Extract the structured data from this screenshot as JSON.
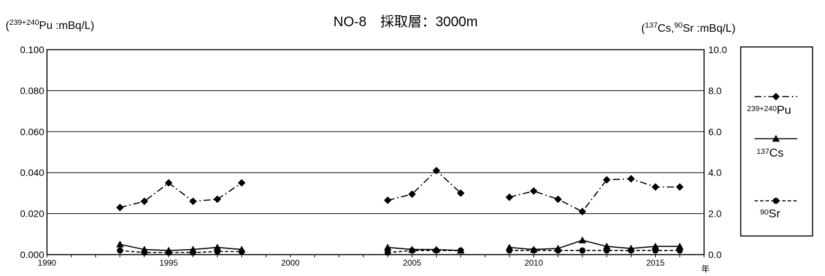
{
  "chart_data": {
    "type": "line",
    "title": "NO-8　採取層：3000m",
    "left_axis": {
      "label_open": "(",
      "label_sup": "239+240",
      "label_main": "Pu :mBq/L)",
      "range": [
        0,
        0.1
      ],
      "ticks": [
        "0.000",
        "0.020",
        "0.040",
        "0.060",
        "0.080",
        "0.100"
      ]
    },
    "right_axis": {
      "label_open": "(",
      "label_sup1": "137",
      "label_mid": "Cs,",
      "label_sup2": "90",
      "label_main": "Sr :mBq/L)",
      "range": [
        0,
        10
      ],
      "ticks": [
        "0.0",
        "2.0",
        "4.0",
        "6.0",
        "8.0",
        "10.0"
      ]
    },
    "x_axis": {
      "range": [
        1990,
        2017
      ],
      "ticks": [
        "1990",
        "1995",
        "2000",
        "2005",
        "2010",
        "2015"
      ],
      "unit": "年"
    },
    "grid": "horizontal",
    "legend_position": "right",
    "series": [
      {
        "key": "pu",
        "name_sup": "239+240",
        "name_main": "Pu",
        "axis": "left",
        "marker": "diamond",
        "line": "dashdot",
        "color": "#000000",
        "segments": [
          [
            [
              1993,
              0.023
            ],
            [
              1994,
              0.026
            ],
            [
              1995,
              0.035
            ],
            [
              1996,
              0.026
            ],
            [
              1997,
              0.027
            ],
            [
              1998,
              0.035
            ]
          ],
          [
            [
              2004,
              0.0265
            ],
            [
              2005,
              0.0295
            ],
            [
              2006,
              0.041
            ],
            [
              2007,
              0.03
            ]
          ],
          [
            [
              2009,
              0.028
            ],
            [
              2010,
              0.031
            ],
            [
              2011,
              0.027
            ],
            [
              2012,
              0.021
            ],
            [
              2013,
              0.0365
            ],
            [
              2014,
              0.037
            ],
            [
              2015,
              0.033
            ],
            [
              2016,
              0.033
            ]
          ]
        ]
      },
      {
        "key": "cs",
        "name_sup": "137",
        "name_main": "Cs",
        "axis": "right",
        "marker": "triangle",
        "line": "solid",
        "color": "#000000",
        "segments": [
          [
            [
              1993,
              0.5
            ],
            [
              1994,
              0.25
            ],
            [
              1995,
              0.2
            ],
            [
              1996,
              0.25
            ],
            [
              1997,
              0.35
            ],
            [
              1998,
              0.25
            ]
          ],
          [
            [
              2004,
              0.35
            ],
            [
              2005,
              0.25
            ],
            [
              2006,
              0.25
            ],
            [
              2007,
              0.2
            ]
          ],
          [
            [
              2009,
              0.35
            ],
            [
              2010,
              0.25
            ],
            [
              2011,
              0.3
            ],
            [
              2012,
              0.7
            ],
            [
              2013,
              0.4
            ],
            [
              2014,
              0.3
            ],
            [
              2015,
              0.4
            ],
            [
              2016,
              0.4
            ]
          ]
        ]
      },
      {
        "key": "sr",
        "name_sup": "90",
        "name_main": "Sr",
        "axis": "right",
        "marker": "circle",
        "line": "dashed",
        "color": "#000000",
        "segments": [
          [
            [
              1993,
              0.2
            ],
            [
              1994,
              0.1
            ],
            [
              1995,
              0.1
            ],
            [
              1996,
              0.1
            ],
            [
              1997,
              0.15
            ],
            [
              1998,
              0.15
            ]
          ],
          [
            [
              2004,
              0.1
            ],
            [
              2005,
              0.2
            ],
            [
              2006,
              0.2
            ],
            [
              2007,
              0.2
            ]
          ],
          [
            [
              2009,
              0.2
            ],
            [
              2010,
              0.2
            ],
            [
              2011,
              0.2
            ],
            [
              2012,
              0.2
            ],
            [
              2013,
              0.2
            ],
            [
              2014,
              0.2
            ],
            [
              2015,
              0.2
            ],
            [
              2016,
              0.2
            ]
          ]
        ]
      }
    ]
  }
}
